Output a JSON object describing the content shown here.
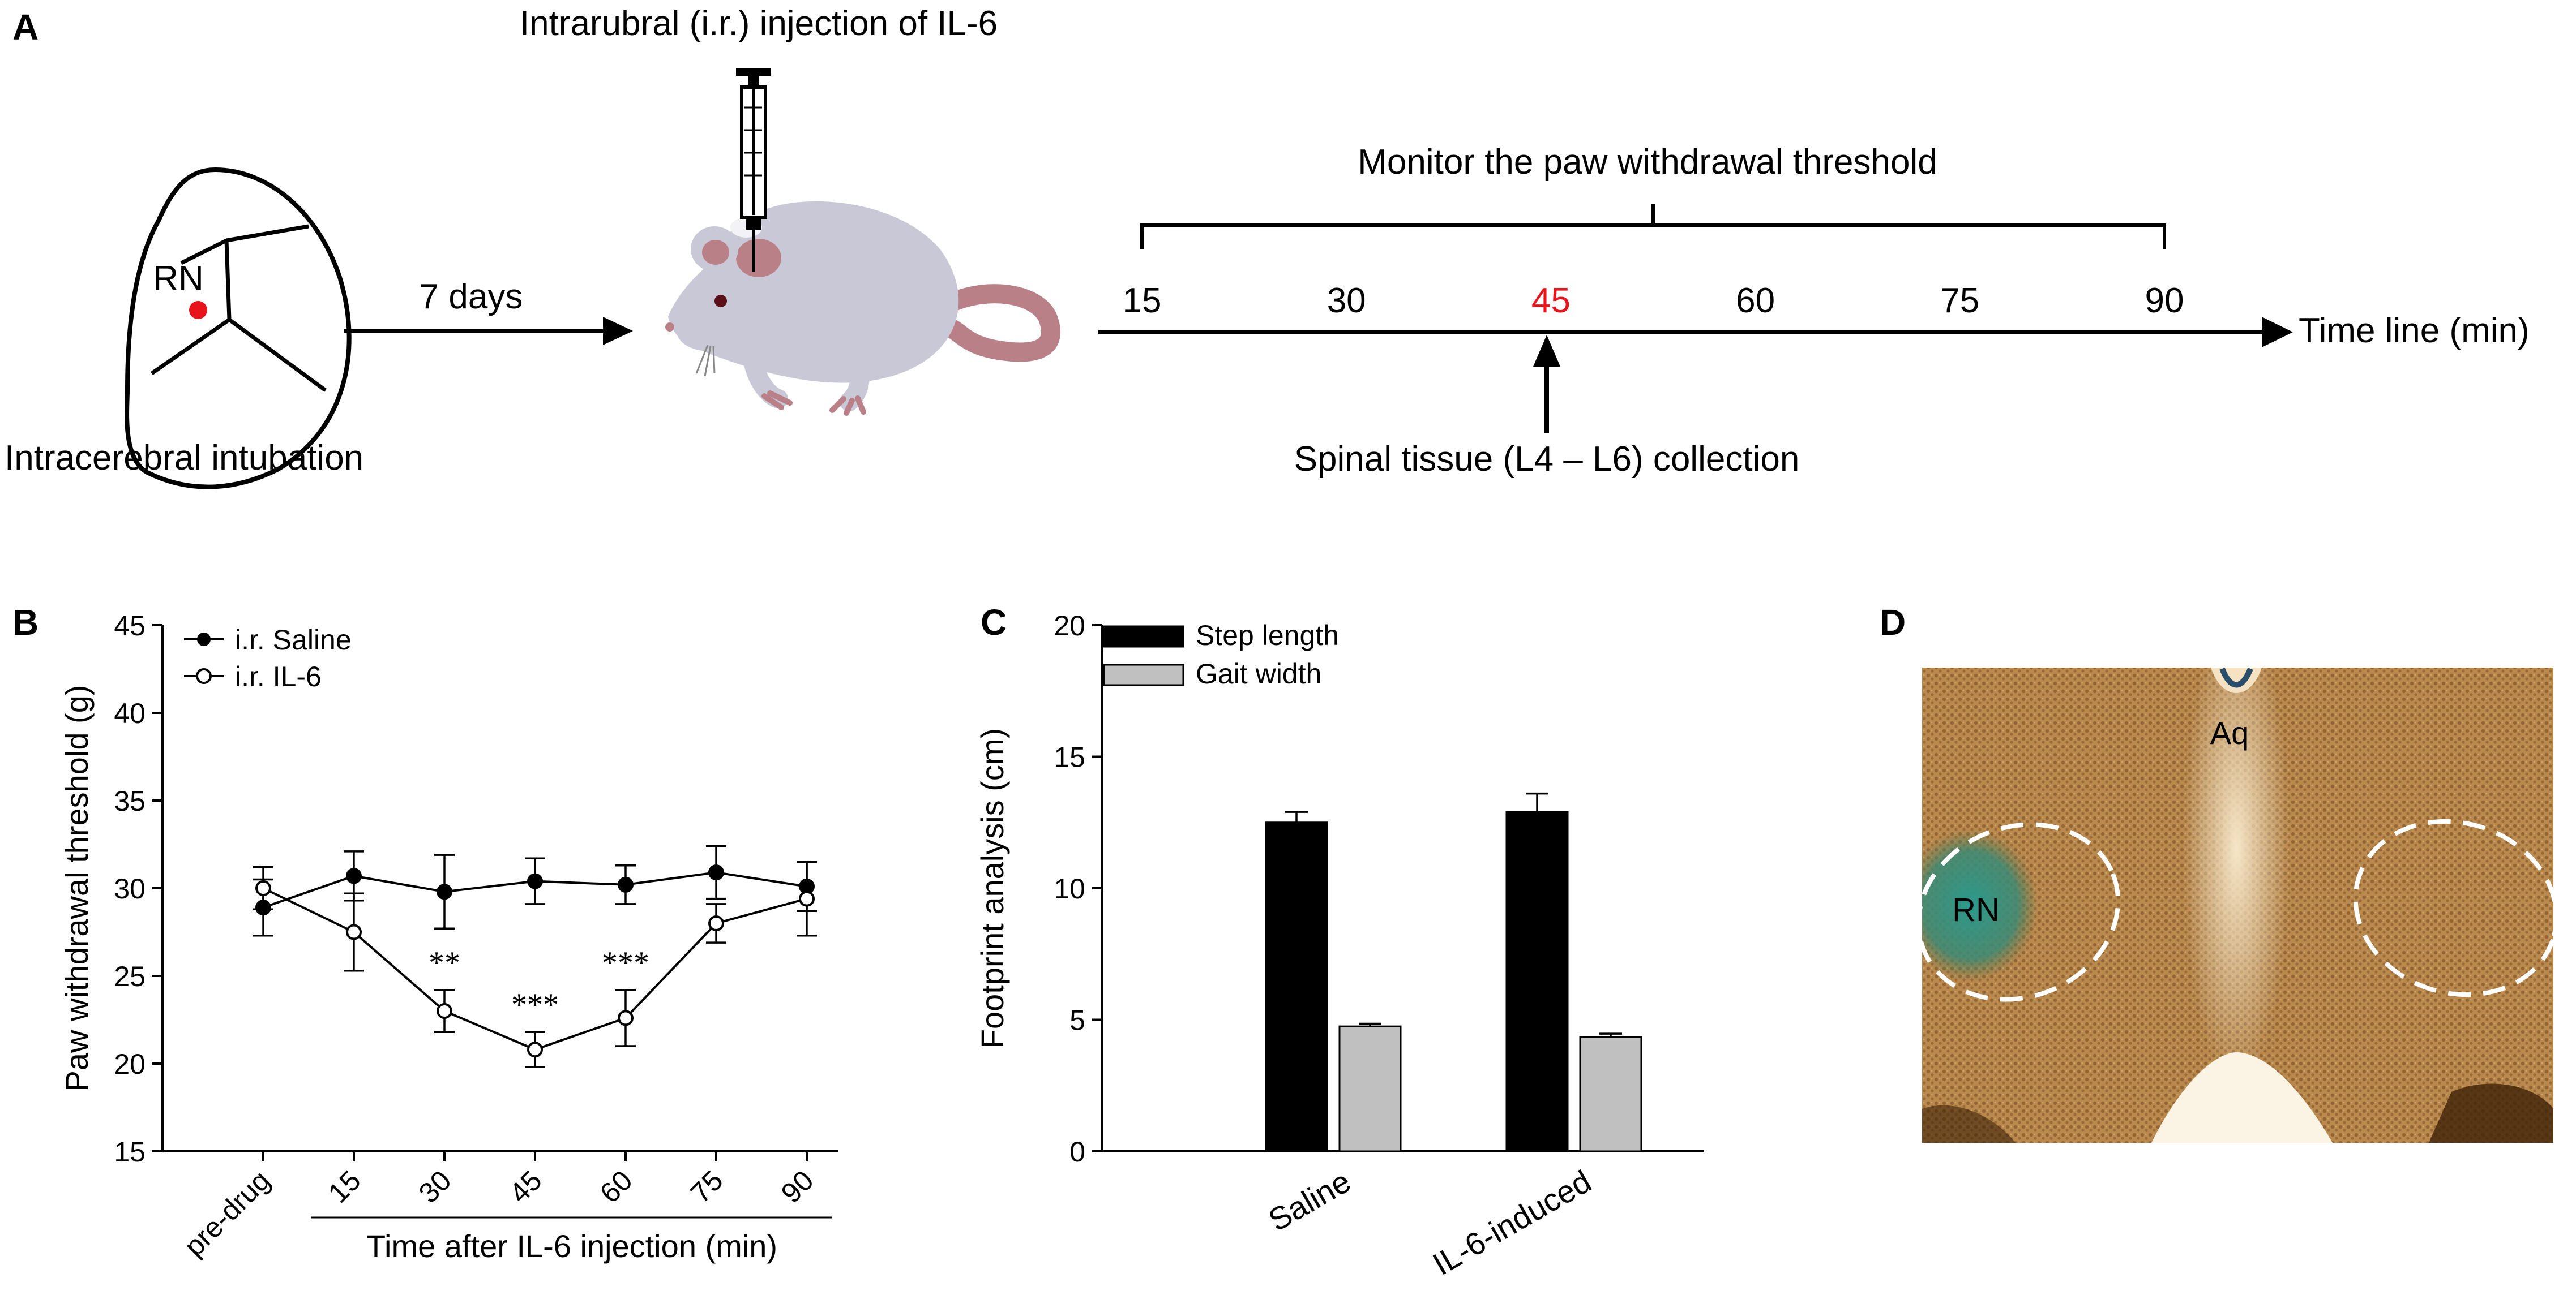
{
  "panel_a": {
    "label": "A",
    "injection_title": "Intrarubral (i.r.) injection of IL-6",
    "brain_label": "RN",
    "intubation_label": "Intracerebral intubation",
    "interval_label": "7 days",
    "monitor_label": "Monitor the paw withdrawal threshold",
    "timeline_ticks": [
      "15",
      "30",
      "45",
      "60",
      "75",
      "90"
    ],
    "highlight_tick": "45",
    "timeline_label": "Time line (min)",
    "collection_label": "Spinal tissue (L4 – L6) collection",
    "colors": {
      "highlight": "#e8141c",
      "rat_body": "#c9c8d6",
      "rat_pink": "#b98088",
      "brain_dot": "#e8141c"
    }
  },
  "panel_b": {
    "label": "B",
    "legend": [
      "i.r. Saline",
      "i.r. IL-6"
    ],
    "annotations": [
      "**",
      "***",
      "***"
    ]
  },
  "panel_c": {
    "label": "C",
    "legend": [
      "Step length",
      "Gait width"
    ]
  },
  "panel_d": {
    "label": "D",
    "labels": {
      "aq": "Aq",
      "rn": "RN"
    },
    "colors": {
      "tissue": "#b8864a",
      "stain": "#2f8f84"
    }
  },
  "chart_data": [
    {
      "type": "line",
      "title": "",
      "xlabel": "Time after IL-6 injection (min)",
      "ylabel": "Paw withdrawal threshold (g)",
      "categories": [
        "pre-drug",
        "15",
        "30",
        "45",
        "60",
        "75",
        "90"
      ],
      "ylim": [
        15,
        45
      ],
      "yticks": [
        15,
        20,
        25,
        30,
        35,
        40,
        45
      ],
      "grid": false,
      "legend_position": "top-left",
      "series": [
        {
          "name": "i.r. Saline",
          "marker": "filled",
          "values": [
            28.9,
            30.7,
            29.8,
            30.4,
            30.2,
            30.9,
            30.1
          ],
          "errors": [
            1.6,
            1.4,
            2.1,
            1.3,
            1.1,
            1.5,
            1.4
          ]
        },
        {
          "name": "i.r. IL-6",
          "marker": "open",
          "values": [
            30.0,
            27.5,
            23.0,
            20.8,
            22.6,
            28.0,
            29.4
          ],
          "errors": [
            1.2,
            2.2,
            1.2,
            1.0,
            1.6,
            1.1,
            2.1
          ]
        }
      ],
      "significance": [
        {
          "category": "30",
          "text": "**"
        },
        {
          "category": "45",
          "text": "***"
        },
        {
          "category": "60",
          "text": "***"
        }
      ]
    },
    {
      "type": "bar",
      "title": "",
      "xlabel": "",
      "ylabel": "Footprint analysis (cm)",
      "categories": [
        "Saline",
        "IL-6-induced"
      ],
      "ylim": [
        0,
        20
      ],
      "yticks": [
        0,
        5,
        10,
        15,
        20
      ],
      "grid": false,
      "legend_position": "top-left",
      "series": [
        {
          "name": "Step length",
          "color": "#000000",
          "values": [
            12.5,
            12.9
          ],
          "errors": [
            0.4,
            0.7
          ]
        },
        {
          "name": "Gait width",
          "color": "#c0c0c0",
          "values": [
            4.75,
            4.35
          ],
          "errors": [
            0.1,
            0.12
          ]
        }
      ]
    }
  ]
}
